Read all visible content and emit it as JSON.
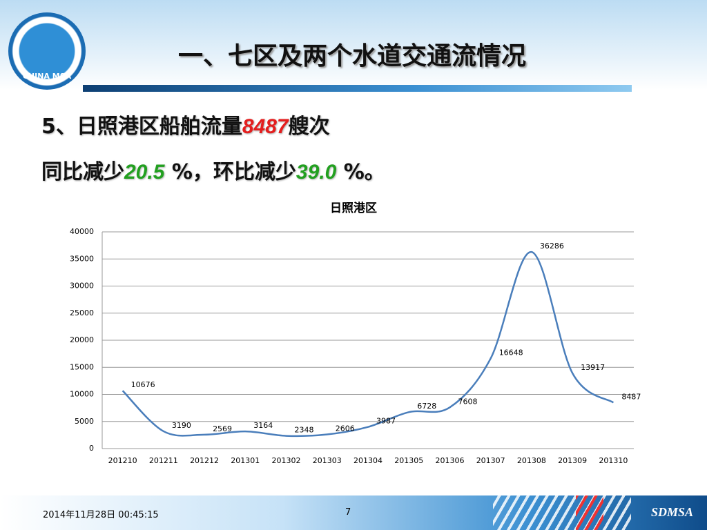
{
  "header": {
    "title": "一、七区及两个水道交通流情况",
    "logo_text": "CHINA MSA"
  },
  "body": {
    "line1": [
      "5、日照港区船舶流量",
      "8487",
      "艘次"
    ],
    "line2": [
      "同比减少",
      "20.5",
      " %，环比减少",
      "39.0",
      " %。"
    ]
  },
  "chart_data": {
    "type": "line",
    "title": "日照港区",
    "categories": [
      "201210",
      "201211",
      "201212",
      "201301",
      "201302",
      "201303",
      "201304",
      "201305",
      "201306",
      "201307",
      "201308",
      "201309",
      "201310"
    ],
    "values": [
      10676,
      3190,
      2569,
      3164,
      2348,
      2606,
      3987,
      6728,
      7608,
      16648,
      36286,
      13917,
      8487
    ],
    "color": "#4a7ebb",
    "smooth": true,
    "grid": true,
    "ylim": [
      0,
      40000
    ],
    "yticks": [
      0,
      5000,
      10000,
      15000,
      20000,
      25000,
      30000,
      35000,
      40000
    ]
  },
  "footer": {
    "date": "2014年11月28日  00:45:15",
    "page": "7",
    "brand": "SDMSA"
  }
}
